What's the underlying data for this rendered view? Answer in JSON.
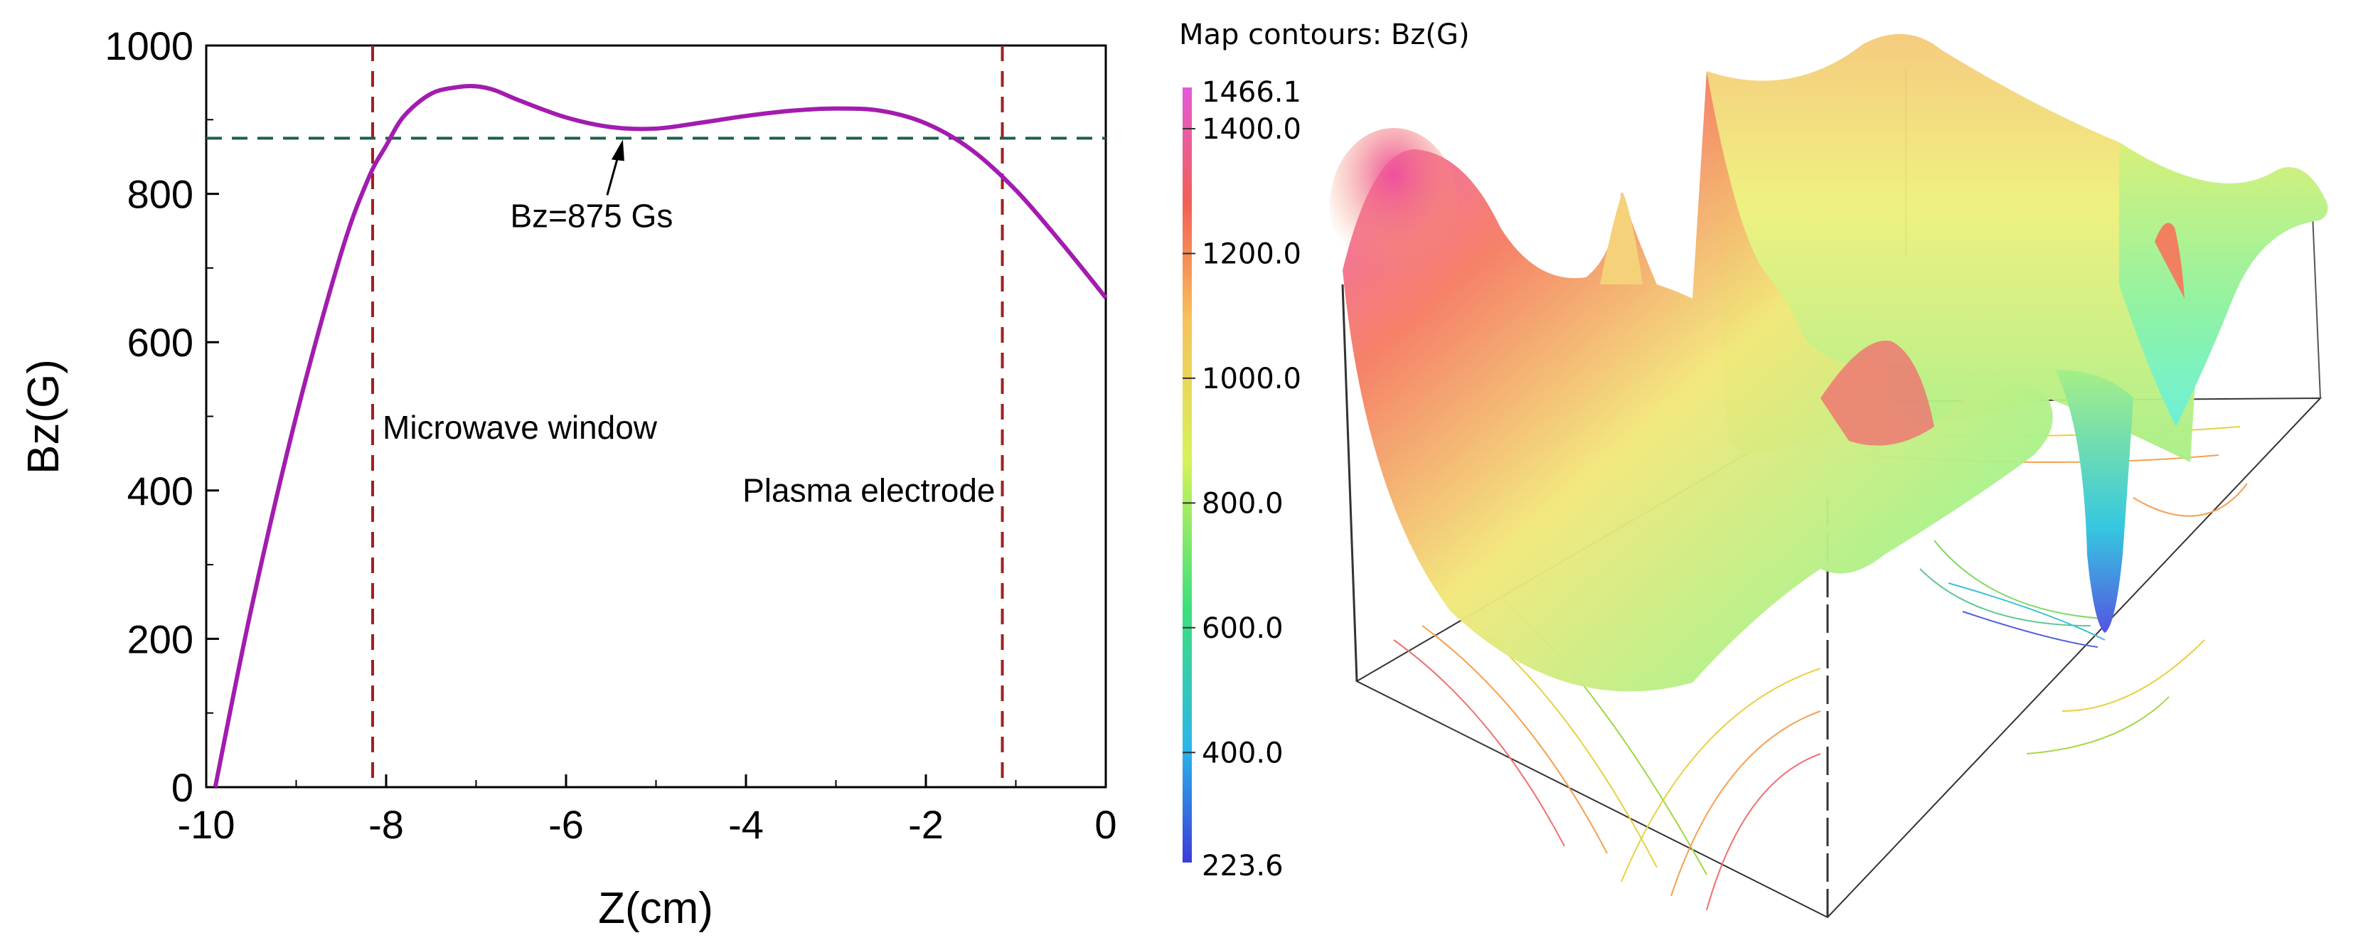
{
  "chart_data": [
    {
      "type": "line",
      "title": "",
      "xlabel": "Z(cm)",
      "ylabel": "Bz(G)",
      "xlim": [
        -10,
        0
      ],
      "ylim": [
        0,
        1000
      ],
      "xticks": [
        -10,
        -8,
        -6,
        -4,
        -2,
        0
      ],
      "xtick_labels": [
        "-10",
        "-8",
        "-6",
        "-4",
        "-2",
        "0"
      ],
      "yticks": [
        0,
        200,
        400,
        600,
        800,
        1000
      ],
      "ytick_labels": [
        "0",
        "200",
        "400",
        "600",
        "800",
        "1000"
      ],
      "series": [
        {
          "name": "Bz",
          "color": "#a21caf",
          "x": [
            -9.9,
            -9.5,
            -9.0,
            -8.5,
            -8.2,
            -8.0,
            -7.8,
            -7.5,
            -7.2,
            -7.0,
            -6.8,
            -6.5,
            -6.0,
            -5.5,
            -5.0,
            -4.5,
            -4.0,
            -3.5,
            -3.0,
            -2.5,
            -2.0,
            -1.5,
            -1.0,
            -0.5,
            0.0
          ],
          "y": [
            0,
            240,
            500,
            720,
            820,
            865,
            905,
            935,
            944,
            945,
            940,
            925,
            903,
            890,
            888,
            896,
            905,
            912,
            915,
            912,
            895,
            860,
            805,
            735,
            660
          ]
        }
      ],
      "reference_lines": [
        {
          "orientation": "horizontal",
          "value": 875,
          "color": "#1f5f4f",
          "style": "dashed"
        },
        {
          "orientation": "vertical",
          "value": -8.15,
          "color": "#a02020",
          "style": "dashed"
        },
        {
          "orientation": "vertical",
          "value": -1.15,
          "color": "#a02020",
          "style": "dashed"
        }
      ],
      "annotations": [
        {
          "text": "Bz=875 Gs",
          "x": -5.4,
          "y": 875
        },
        {
          "text": "Microwave window",
          "x": -8.15,
          "y": 470
        },
        {
          "text": "Plasma electrode",
          "x": -1.15,
          "y": 385
        }
      ]
    },
    {
      "type": "heatmap",
      "subtype": "3d-surface-with-contours",
      "title": "Map contours: Bz(G)",
      "colorbar": {
        "min": 223.6,
        "max": 1466.1,
        "min_label": "223.6",
        "max_label": "1466.1",
        "ticks": [
          400,
          600,
          800,
          1000,
          1200,
          1400
        ],
        "tick_labels": [
          "400.0",
          "600.0",
          "800.0",
          "1000.0",
          "1200.0",
          "1400.0"
        ],
        "colors": [
          "#3b3bd9",
          "#2ab7e8",
          "#3de07a",
          "#d6f25a",
          "#f7c25c",
          "#f35f55",
          "#e35ad8"
        ]
      }
    }
  ]
}
